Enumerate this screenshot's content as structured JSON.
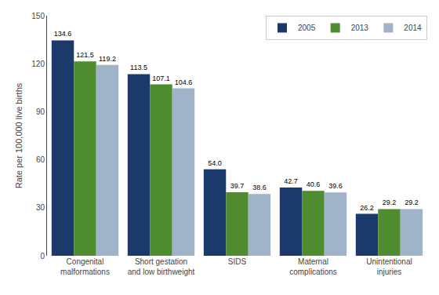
{
  "chart_data": {
    "type": "bar",
    "categories": [
      "Congenital\nmalformations",
      "Short gestation\nand low birthweight",
      "SIDS",
      "Maternal\ncomplications",
      "Unintentional\ninjuries"
    ],
    "series": [
      {
        "name": "2005",
        "color": "#1b3a6b",
        "values": [
          134.6,
          113.5,
          54.0,
          42.7,
          26.2
        ],
        "value_labels": [
          "134.6",
          "113.5",
          "54.0",
          "42.7",
          "26.2"
        ]
      },
      {
        "name": "2013",
        "color": "#4e8c2f",
        "values": [
          121.5,
          107.1,
          39.7,
          40.6,
          29.2
        ],
        "value_labels": [
          "121.5",
          "107.1",
          "39.7",
          "40.6",
          "29.2"
        ]
      },
      {
        "name": "2014",
        "color": "#9fb4c8",
        "values": [
          119.2,
          104.6,
          38.6,
          39.6,
          29.2
        ],
        "value_labels": [
          "119.2",
          "104.6",
          "38.6",
          "39.6",
          "29.2"
        ]
      }
    ],
    "ylabel": "Rate per 100,000 live births",
    "ylim": [
      0,
      150
    ],
    "yticks": [
      0,
      30,
      60,
      90,
      120,
      150
    ],
    "grid": false,
    "legend": "upper right",
    "data_labels": true
  }
}
